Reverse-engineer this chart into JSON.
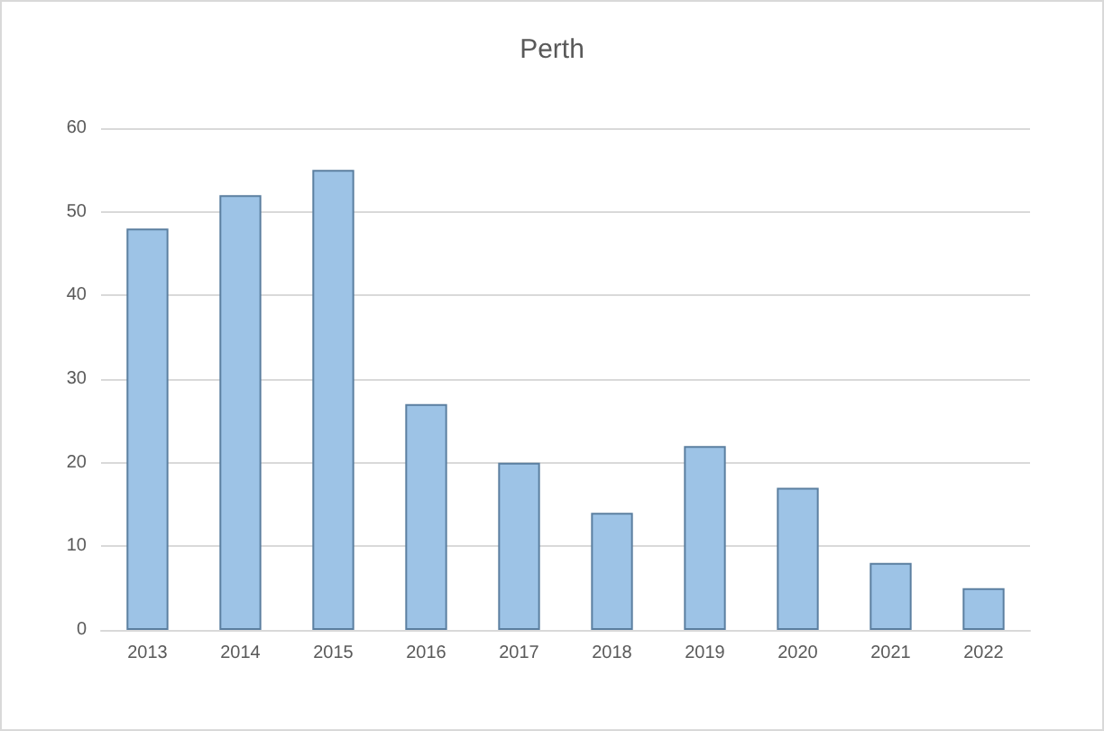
{
  "chart_data": {
    "type": "bar",
    "title": "Perth",
    "categories": [
      "2013",
      "2014",
      "2015",
      "2016",
      "2017",
      "2018",
      "2019",
      "2020",
      "2021",
      "2022"
    ],
    "values": [
      48,
      52,
      55,
      27,
      20,
      14,
      22,
      17,
      8,
      5
    ],
    "color": "#9dc3e6",
    "ylim": [
      0,
      60
    ],
    "yticks": [
      0,
      10,
      20,
      30,
      40,
      50,
      60
    ],
    "grid": "y"
  }
}
